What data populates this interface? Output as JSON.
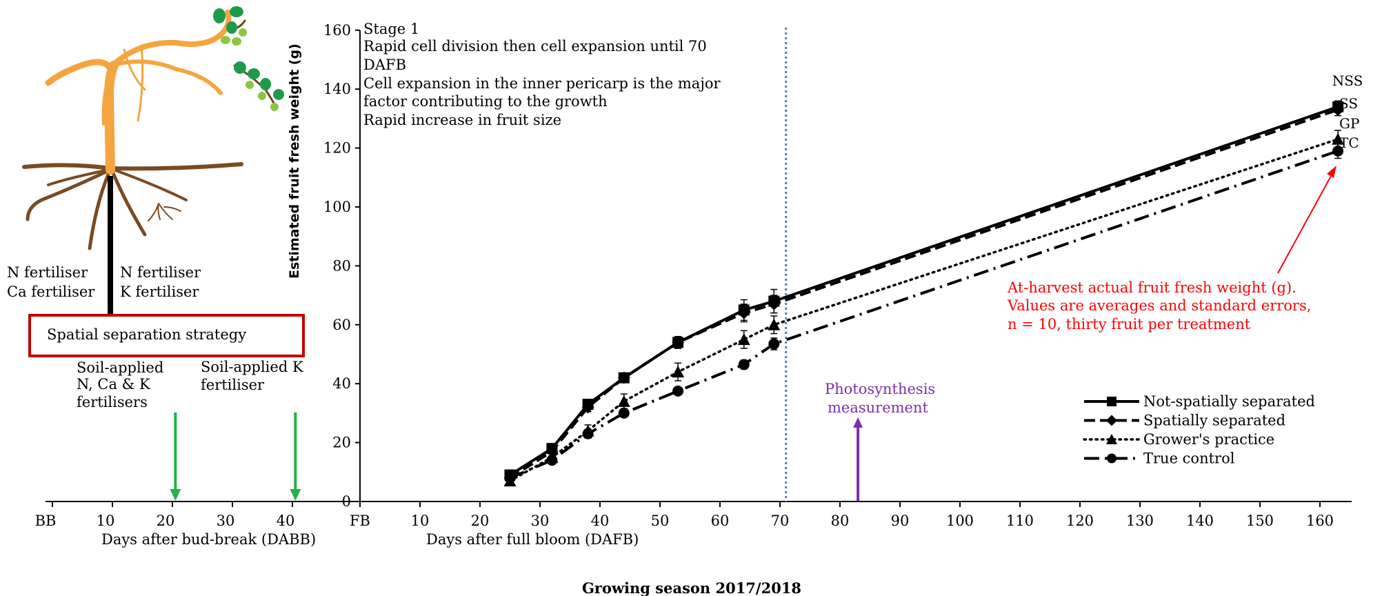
{
  "chart_data": {
    "type": "line",
    "ylabel": "Estimated fruit fresh weight (g)",
    "ylim": [
      0,
      160
    ],
    "yticks": [
      "0",
      "20",
      "40",
      "60",
      "80",
      "100",
      "120",
      "140",
      "160"
    ],
    "xlabel": "Days after full bloom (DAFB)",
    "xlim": [
      0,
      165
    ],
    "xticks": [
      "FB",
      "10",
      "20",
      "30",
      "40",
      "50",
      "60",
      "70",
      "80",
      "90",
      "100",
      "110",
      "120",
      "130",
      "140",
      "150",
      "160"
    ],
    "x2label": "Days after bud-break (DABB)",
    "x2ticks": [
      "BB",
      "10",
      "20",
      "30",
      "40"
    ],
    "footer": "Growing season 2017/2018",
    "series": [
      {
        "name": "Not-spatially separated",
        "short": "NSS",
        "marker": "square",
        "dash": "solid",
        "x": [
          25,
          32,
          38,
          44,
          53,
          64,
          69,
          163
        ],
        "y": [
          9,
          18,
          33,
          42,
          54,
          65,
          68,
          134
        ],
        "err": [
          1,
          1.5,
          1.5,
          1.5,
          2,
          3.5,
          4,
          2
        ]
      },
      {
        "name": "Spatially separated",
        "short": "SS",
        "marker": "diamond",
        "dash": "dashed",
        "x": [
          25,
          32,
          38,
          44,
          53,
          64,
          69,
          163
        ],
        "y": [
          8,
          17,
          32,
          42,
          54,
          64,
          67,
          133
        ],
        "err": [
          1,
          1.5,
          1.5,
          1.5,
          2,
          3,
          3,
          2
        ]
      },
      {
        "name": "Grower's practice",
        "short": "GP",
        "marker": "triangle",
        "dash": "dotted",
        "x": [
          25,
          32,
          38,
          44,
          53,
          64,
          69,
          163
        ],
        "y": [
          7,
          15,
          24,
          34,
          44,
          55,
          60,
          123
        ],
        "err": [
          1,
          1.5,
          2,
          2.5,
          3,
          3,
          3,
          3
        ]
      },
      {
        "name": "True control",
        "short": "TC",
        "marker": "circle",
        "dash": "dashdot",
        "x": [
          25,
          32,
          38,
          44,
          53,
          64,
          69,
          163
        ],
        "y": [
          8,
          14,
          23,
          30,
          37.5,
          46.5,
          53.5,
          119
        ],
        "err": [
          1,
          1,
          1.5,
          1,
          1,
          1.5,
          2,
          2.5
        ]
      }
    ],
    "vline_x": 71,
    "stage_text": [
      "Stage 1",
      "Rapid cell division then cell expansion until 70",
      "DAFB",
      "Cell expansion in the inner pericarp is the major",
      "factor contributing to the growth",
      "Rapid increase in fruit size"
    ],
    "harvest_note": [
      "At-harvest actual fruit fresh weight (g).",
      "Values are averages and standard errors,",
      "n = 10, thirty fruit per treatment"
    ],
    "photosynthesis_label": [
      "Photosynthesis",
      "measurement"
    ],
    "photosynthesis_x": 83,
    "fertiliser_left": [
      "N fertiliser",
      "Ca fertiliser"
    ],
    "fertiliser_right": [
      "N fertiliser",
      "K fertiliser"
    ],
    "strategy_label": "Spatial separation strategy",
    "soil_applied_1": [
      "Soil-applied",
      "N, Ca & K",
      "fertilisers"
    ],
    "soil_applied_2": [
      "Soil-applied K",
      "fertiliser"
    ],
    "fertiliser_arrow_dabb": [
      20.5,
      40.5
    ],
    "colors": {
      "axis": "#000000",
      "vline": "#4a7bb5",
      "note": "#ff0000",
      "photosynthesis": "#7b2fa8",
      "green_arrow": "#22b14c",
      "strategy_box": "#c00000",
      "root": "#7a4a22",
      "branch": "#f5a540",
      "leaf_dark": "#1e9a4b",
      "leaf_light": "#8cc63f"
    }
  }
}
